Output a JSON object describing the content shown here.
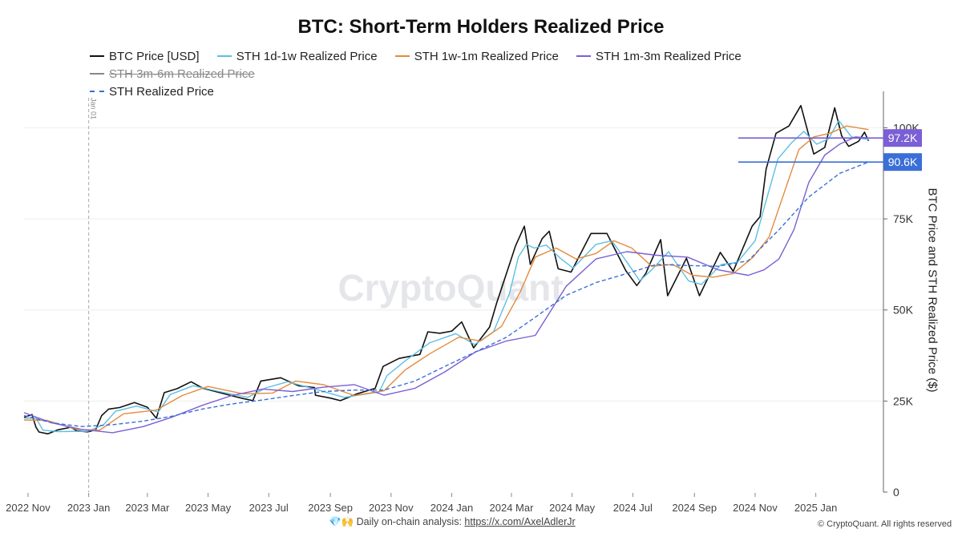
{
  "title": "BTC: Short-Term Holders Realized Price",
  "legend": [
    {
      "label": "BTC Price [USD]",
      "color": "#111111",
      "style": "solid",
      "hidden": false
    },
    {
      "label": "STH 1d-1w Realized Price",
      "color": "#5bbfe3",
      "style": "solid",
      "hidden": false
    },
    {
      "label": "STH 1w-1m Realized Price",
      "color": "#e58a3c",
      "style": "solid",
      "hidden": false
    },
    {
      "label": "STH 1m-3m Realized Price",
      "color": "#7b5fd6",
      "style": "solid",
      "hidden": false
    },
    {
      "label": "STH 3m-6m Realized Price",
      "color": "#888888",
      "style": "solid",
      "hidden": true
    },
    {
      "label": "STH Realized Price",
      "color": "#3a6fd8",
      "style": "dashed",
      "hidden": false
    }
  ],
  "watermark": "CryptoQuant",
  "annotation_date": "Jan 01",
  "footer": {
    "icons": "💎🙌",
    "text": "Daily on-chain analysis:",
    "link": "https://x.com/AxelAdlerJr",
    "copyright": "© CryptoQuant. All rights reserved"
  },
  "chart_data": {
    "type": "line",
    "ylabel": "BTC Price and STH Realized Price ($)",
    "ylim": [
      0,
      110000
    ],
    "y_ticks": [
      "0",
      "25K",
      "50K",
      "75K",
      "100K"
    ],
    "y_tick_values": [
      0,
      25000,
      50000,
      75000,
      100000
    ],
    "x_ticks": [
      "2022 Nov",
      "2023 Jan",
      "2023 Mar",
      "2023 May",
      "2023 Jul",
      "2023 Sep",
      "2023 Nov",
      "2024 Jan",
      "2024 Mar",
      "2024 May",
      "2024 Jul",
      "2024 Sep",
      "2024 Nov",
      "2025 Jan"
    ],
    "x_tick_dates": [
      "2022-11-01",
      "2023-01-01",
      "2023-03-01",
      "2023-05-01",
      "2023-07-01",
      "2023-09-01",
      "2023-11-01",
      "2024-01-01",
      "2024-03-01",
      "2024-05-01",
      "2024-07-01",
      "2024-09-01",
      "2024-11-01",
      "2025-01-01"
    ],
    "xlim": [
      "2022-10-28",
      "2025-03-10"
    ],
    "vline_date": "2023-01-01",
    "price_labels": [
      {
        "text": "97.2K",
        "value": 97200,
        "color": "#7b5fd6",
        "line_from": "2024-10-15"
      },
      {
        "text": "90.6K",
        "value": 90600,
        "color": "#3a6fd8",
        "line_from": "2024-10-15"
      }
    ],
    "series": [
      {
        "name": "BTC Price [USD]",
        "color": "#111111",
        "dash": false,
        "width": 1.6,
        "x": [
          "2022-10-28",
          "2022-11-05",
          "2022-11-09",
          "2022-11-12",
          "2022-11-21",
          "2022-12-01",
          "2022-12-14",
          "2022-12-20",
          "2022-12-31",
          "2023-01-08",
          "2023-01-14",
          "2023-01-21",
          "2023-02-01",
          "2023-02-16",
          "2023-03-01",
          "2023-03-10",
          "2023-03-18",
          "2023-03-31",
          "2023-04-14",
          "2023-04-26",
          "2023-05-10",
          "2023-05-24",
          "2023-06-05",
          "2023-06-15",
          "2023-06-23",
          "2023-07-13",
          "2023-07-31",
          "2023-08-16",
          "2023-08-17",
          "2023-09-01",
          "2023-09-11",
          "2023-09-28",
          "2023-10-16",
          "2023-10-24",
          "2023-11-09",
          "2023-11-30",
          "2023-12-08",
          "2023-12-20",
          "2024-01-01",
          "2024-01-11",
          "2024-01-23",
          "2024-02-08",
          "2024-02-15",
          "2024-02-28",
          "2024-03-05",
          "2024-03-14",
          "2024-03-20",
          "2024-04-01",
          "2024-04-08",
          "2024-04-17",
          "2024-04-30",
          "2024-05-20",
          "2024-06-05",
          "2024-06-24",
          "2024-07-05",
          "2024-07-14",
          "2024-07-29",
          "2024-08-05",
          "2024-08-24",
          "2024-09-06",
          "2024-09-27",
          "2024-10-10",
          "2024-10-29",
          "2024-11-06",
          "2024-11-12",
          "2024-11-22",
          "2024-12-05",
          "2024-12-17",
          "2024-12-30",
          "2025-01-10",
          "2025-01-20",
          "2025-01-27",
          "2025-02-03",
          "2025-02-13",
          "2025-02-19",
          "2025-02-23"
        ],
        "values": [
          20500,
          21300,
          17800,
          16500,
          16000,
          17100,
          17800,
          16800,
          16550,
          17100,
          21000,
          22800,
          23200,
          24600,
          23300,
          20300,
          27300,
          28400,
          30300,
          28500,
          27500,
          26500,
          25700,
          25100,
          30500,
          31400,
          29200,
          28700,
          26600,
          25800,
          25100,
          27000,
          28500,
          34500,
          36700,
          37800,
          44000,
          43600,
          44200,
          46700,
          39600,
          45300,
          51800,
          62500,
          67500,
          73000,
          62500,
          69600,
          71600,
          61300,
          60400,
          71000,
          71000,
          60800,
          56700,
          60000,
          69300,
          53900,
          64200,
          53900,
          65800,
          60600,
          73000,
          75600,
          88600,
          98500,
          100500,
          106100,
          92800,
          94600,
          105500,
          97800,
          94900,
          96300,
          98800,
          96400
        ]
      },
      {
        "name": "STH 1d-1w Realized Price",
        "color": "#5bbfe3",
        "dash": false,
        "width": 1.4,
        "x": [
          "2022-10-28",
          "2022-11-09",
          "2022-11-16",
          "2022-12-01",
          "2022-12-31",
          "2023-01-16",
          "2023-01-28",
          "2023-02-18",
          "2023-03-12",
          "2023-03-24",
          "2023-04-16",
          "2023-05-12",
          "2023-06-10",
          "2023-06-28",
          "2023-07-20",
          "2023-08-20",
          "2023-09-15",
          "2023-10-20",
          "2023-10-28",
          "2023-11-15",
          "2023-12-10",
          "2024-01-05",
          "2024-01-24",
          "2024-02-12",
          "2024-02-28",
          "2024-03-08",
          "2024-03-16",
          "2024-03-24",
          "2024-04-05",
          "2024-04-20",
          "2024-05-02",
          "2024-05-25",
          "2024-06-10",
          "2024-06-28",
          "2024-07-08",
          "2024-07-20",
          "2024-08-06",
          "2024-08-26",
          "2024-09-08",
          "2024-09-28",
          "2024-10-14",
          "2024-11-01",
          "2024-11-10",
          "2024-11-24",
          "2024-12-08",
          "2024-12-20",
          "2025-01-02",
          "2025-01-14",
          "2025-01-24",
          "2025-02-06",
          "2025-02-23"
        ],
        "values": [
          20300,
          20300,
          17000,
          16600,
          16700,
          18500,
          22200,
          23600,
          22000,
          26800,
          29200,
          27600,
          26000,
          28600,
          30300,
          28000,
          26000,
          27500,
          32000,
          36000,
          41000,
          43500,
          40500,
          44000,
          54500,
          64500,
          68000,
          67000,
          67800,
          64000,
          61500,
          68000,
          69000,
          62000,
          58000,
          61000,
          66000,
          58000,
          57000,
          62500,
          63000,
          69000,
          78000,
          91500,
          96000,
          99000,
          95500,
          97000,
          102000,
          97500,
          96800
        ]
      },
      {
        "name": "STH 1w-1m Realized Price",
        "color": "#e58a3c",
        "dash": false,
        "width": 1.4,
        "x": [
          "2022-10-28",
          "2022-11-20",
          "2022-12-20",
          "2023-01-12",
          "2023-02-05",
          "2023-03-10",
          "2023-04-05",
          "2023-05-01",
          "2023-06-05",
          "2023-07-05",
          "2023-07-28",
          "2023-08-25",
          "2023-09-25",
          "2023-10-25",
          "2023-11-15",
          "2023-12-10",
          "2024-01-08",
          "2024-01-30",
          "2024-02-20",
          "2024-03-10",
          "2024-03-25",
          "2024-04-15",
          "2024-05-05",
          "2024-05-25",
          "2024-06-12",
          "2024-06-30",
          "2024-07-20",
          "2024-08-10",
          "2024-08-30",
          "2024-09-20",
          "2024-10-10",
          "2024-10-30",
          "2024-11-15",
          "2024-11-30",
          "2024-12-15",
          "2024-12-30",
          "2025-01-15",
          "2025-02-01",
          "2025-02-23"
        ],
        "values": [
          19800,
          19700,
          17200,
          17000,
          21500,
          22500,
          26500,
          29000,
          27000,
          27200,
          30500,
          29500,
          26500,
          27800,
          33500,
          38000,
          42500,
          41500,
          45500,
          55000,
          64500,
          67000,
          64000,
          65500,
          69000,
          67000,
          62000,
          62500,
          59500,
          59000,
          60000,
          64500,
          70000,
          82000,
          94000,
          97500,
          98500,
          100500,
          99500
        ]
      },
      {
        "name": "STH 1m-3m Realized Price",
        "color": "#7b5fd6",
        "dash": false,
        "width": 1.4,
        "x": [
          "2022-10-28",
          "2022-11-25",
          "2022-12-25",
          "2023-01-25",
          "2023-02-25",
          "2023-03-25",
          "2023-04-25",
          "2023-05-25",
          "2023-06-25",
          "2023-07-25",
          "2023-08-25",
          "2023-09-25",
          "2023-10-25",
          "2023-11-25",
          "2023-12-25",
          "2024-01-25",
          "2024-02-25",
          "2024-03-25",
          "2024-04-25",
          "2024-05-25",
          "2024-06-25",
          "2024-07-25",
          "2024-08-25",
          "2024-09-25",
          "2024-10-25",
          "2024-11-10",
          "2024-11-25",
          "2024-12-10",
          "2024-12-25",
          "2025-01-10",
          "2025-01-25",
          "2025-02-10",
          "2025-02-23"
        ],
        "values": [
          21800,
          19000,
          17200,
          16300,
          18000,
          20500,
          23800,
          26500,
          28300,
          27600,
          28800,
          29500,
          26600,
          28500,
          33000,
          38500,
          41500,
          43000,
          56500,
          64000,
          66000,
          65000,
          64500,
          61000,
          59500,
          61000,
          64000,
          72000,
          85000,
          92500,
          95500,
          97500,
          97200
        ]
      },
      {
        "name": "STH Realized Price",
        "color": "#3a6fd8",
        "dash": true,
        "width": 1.4,
        "x": [
          "2022-10-28",
          "2022-11-25",
          "2022-12-25",
          "2023-01-25",
          "2023-02-25",
          "2023-03-25",
          "2023-04-25",
          "2023-05-25",
          "2023-06-25",
          "2023-07-25",
          "2023-08-25",
          "2023-09-25",
          "2023-10-25",
          "2023-11-25",
          "2023-12-25",
          "2024-01-25",
          "2024-02-25",
          "2024-03-25",
          "2024-04-25",
          "2024-05-25",
          "2024-06-25",
          "2024-07-25",
          "2024-08-25",
          "2024-09-25",
          "2024-10-25",
          "2024-11-25",
          "2024-12-25",
          "2025-01-25",
          "2025-02-23"
        ],
        "values": [
          21000,
          19000,
          18000,
          18500,
          19500,
          20800,
          22800,
          24200,
          25300,
          26500,
          27600,
          28000,
          28000,
          30500,
          34500,
          38500,
          42500,
          48000,
          54000,
          57500,
          60000,
          62500,
          62200,
          62000,
          63500,
          72000,
          81000,
          87500,
          90600
        ]
      }
    ]
  }
}
